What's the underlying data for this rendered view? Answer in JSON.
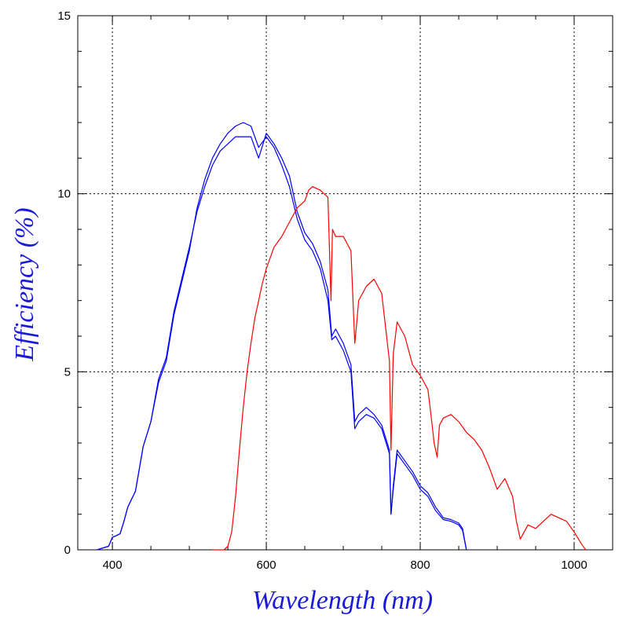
{
  "chart_data": {
    "type": "line",
    "title": "",
    "xlabel": "Wavelength (nm)",
    "ylabel": "Efficiency (%)",
    "xlim": [
      355,
      1050
    ],
    "ylim": [
      0,
      15
    ],
    "xticks": [
      400,
      600,
      800,
      1000
    ],
    "yticks": [
      0,
      5,
      10,
      15
    ],
    "grid": true,
    "series": [
      {
        "color": "#0000ff",
        "x": [
          380,
          395,
          400,
          405,
          410,
          415,
          420,
          430,
          440,
          450,
          460,
          470,
          480,
          490,
          500,
          510,
          520,
          530,
          540,
          550,
          560,
          570,
          580,
          590,
          600,
          610,
          620,
          630,
          640,
          650,
          660,
          670,
          680,
          685,
          690,
          700,
          710,
          715,
          720,
          730,
          740,
          750,
          760,
          762,
          765,
          770,
          780,
          790,
          800,
          810,
          820,
          830,
          840,
          850,
          855,
          860
        ],
        "y": [
          0,
          0.1,
          0.35,
          0.4,
          0.45,
          0.8,
          1.2,
          1.65,
          2.9,
          3.6,
          4.8,
          5.4,
          6.7,
          7.6,
          8.5,
          9.5,
          10.2,
          10.8,
          11.2,
          11.4,
          11.6,
          11.6,
          11.6,
          11.0,
          11.7,
          11.4,
          11.0,
          10.5,
          9.5,
          8.9,
          8.6,
          8.1,
          7.3,
          6.0,
          6.2,
          5.8,
          5.2,
          3.6,
          3.8,
          4.0,
          3.8,
          3.5,
          2.8,
          1.0,
          1.8,
          2.8,
          2.5,
          2.2,
          1.8,
          1.6,
          1.2,
          0.9,
          0.85,
          0.75,
          0.6,
          0
        ]
      },
      {
        "color": "#0000ff",
        "x": [
          380,
          395,
          400,
          405,
          410,
          415,
          420,
          430,
          440,
          450,
          460,
          470,
          480,
          490,
          500,
          510,
          520,
          530,
          540,
          550,
          560,
          570,
          580,
          590,
          600,
          610,
          620,
          630,
          640,
          650,
          660,
          670,
          680,
          685,
          690,
          700,
          710,
          715,
          720,
          730,
          740,
          750,
          760,
          762,
          765,
          770,
          780,
          790,
          800,
          810,
          820,
          830,
          840,
          850,
          855,
          860
        ],
        "y": [
          0,
          0.1,
          0.35,
          0.4,
          0.45,
          0.8,
          1.2,
          1.65,
          2.9,
          3.6,
          4.7,
          5.3,
          6.6,
          7.5,
          8.4,
          9.6,
          10.4,
          11.0,
          11.4,
          11.7,
          11.9,
          12.0,
          11.9,
          11.3,
          11.6,
          11.3,
          10.8,
          10.2,
          9.3,
          8.7,
          8.4,
          7.9,
          7.0,
          5.9,
          6.0,
          5.6,
          5.0,
          3.4,
          3.6,
          3.8,
          3.7,
          3.4,
          2.7,
          1.0,
          1.7,
          2.7,
          2.4,
          2.1,
          1.7,
          1.5,
          1.1,
          0.85,
          0.8,
          0.7,
          0.55,
          0
        ]
      },
      {
        "color": "#ff0000",
        "x": [
          530,
          545,
          550,
          555,
          560,
          565,
          570,
          575,
          580,
          585,
          590,
          595,
          600,
          610,
          620,
          630,
          640,
          650,
          655,
          660,
          670,
          680,
          684,
          686,
          690,
          700,
          710,
          715,
          718,
          720,
          725,
          730,
          740,
          750,
          760,
          762,
          765,
          770,
          780,
          790,
          800,
          810,
          815,
          818,
          822,
          825,
          830,
          840,
          850,
          860,
          870,
          880,
          890,
          900,
          910,
          920,
          925,
          930,
          935,
          940,
          950,
          960,
          970,
          980,
          990,
          1000,
          1010,
          1015
        ],
        "y": [
          0,
          0,
          0.1,
          0.5,
          1.5,
          2.8,
          4.0,
          5.0,
          5.8,
          6.5,
          7.0,
          7.5,
          7.9,
          8.5,
          8.8,
          9.2,
          9.6,
          9.8,
          10.1,
          10.2,
          10.1,
          9.9,
          7.0,
          9.0,
          8.8,
          8.8,
          8.4,
          5.8,
          6.5,
          7.0,
          7.2,
          7.4,
          7.6,
          7.2,
          5.3,
          2.8,
          5.5,
          6.4,
          6.0,
          5.2,
          4.9,
          4.5,
          3.6,
          3.0,
          2.6,
          3.5,
          3.7,
          3.8,
          3.6,
          3.3,
          3.1,
          2.8,
          2.3,
          1.7,
          2.0,
          1.5,
          0.8,
          0.3,
          0.5,
          0.7,
          0.6,
          0.8,
          1.0,
          0.9,
          0.8,
          0.5,
          0.15,
          0
        ]
      }
    ]
  }
}
